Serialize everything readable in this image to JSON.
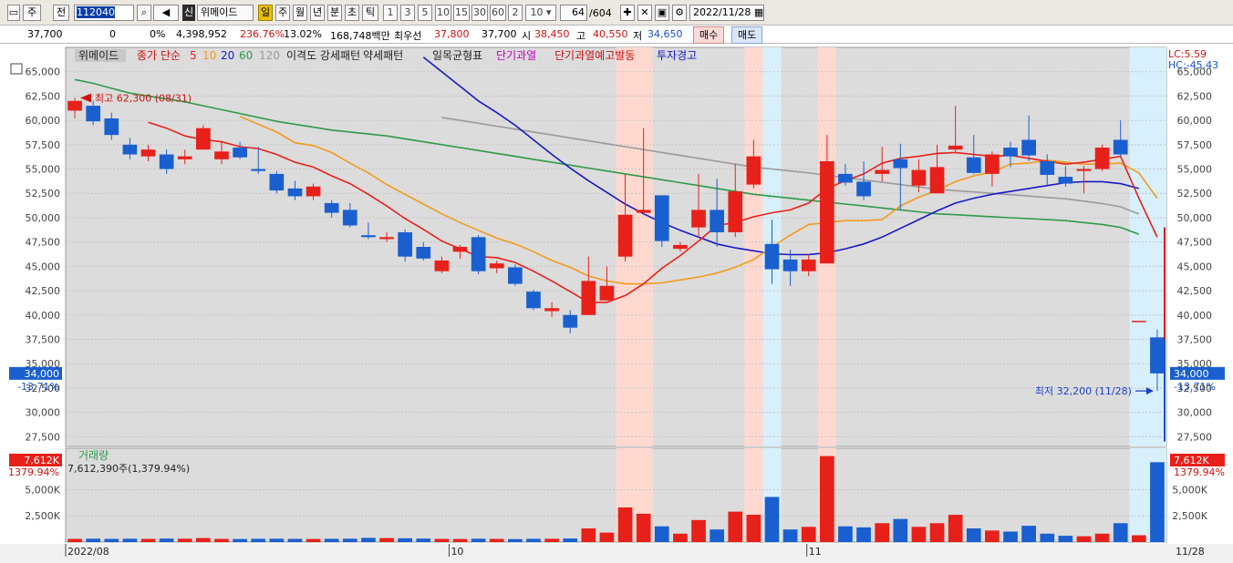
{
  "toolbar": {
    "items": [
      "주",
      "전",
      "112040",
      "신",
      "위메이드",
      "일",
      "주",
      "월",
      "년",
      "분",
      "초",
      "틱",
      "1",
      "3",
      "5",
      "10",
      "15",
      "30",
      "60",
      "2",
      "10",
      "64",
      "/604",
      "2022/11/28"
    ]
  },
  "info": {
    "price": "37,700",
    "change": "0",
    "change_pct": "0%",
    "volume": "4,398,952",
    "vol_ratio": "236.76%",
    "turnover": "13.02%",
    "amount": "168,748백만",
    "best_label": "최우선",
    "best_ask": "37,800",
    "best_bid": "37,700",
    "open_label": "시",
    "open": "38,450",
    "high_label": "고",
    "high": "40,550",
    "low_label": "저",
    "low": "34,650",
    "buy": "매수",
    "sell": "매도"
  },
  "legend": {
    "name": "위메이드",
    "ma_label": "종가 단순",
    "ma5": "5",
    "ma10": "10",
    "ma20": "20",
    "ma60": "60",
    "ma120": "120",
    "items": [
      "이격도 강세패턴",
      "약세패턴",
      "일목균형표",
      "단기과열",
      "단기과열예고발동",
      "투자경고"
    ]
  },
  "right_labels": {
    "lc": "LC:5.59",
    "hc": "HC:-45.43"
  },
  "current_badge": {
    "price": "34,000",
    "pct": "-13.71%"
  },
  "vol_badge": {
    "value": "7,612K",
    "pct": "1379.94%"
  },
  "vol_panel": {
    "title": "거래량",
    "detail": "7,612,390주(1,379.94%)"
  },
  "annotations": {
    "high": "최고 62,300 (08/31)",
    "low": "최저 32,200 (11/28)"
  },
  "chart_data": {
    "type": "candlestick",
    "ylim": [
      26500,
      67500
    ],
    "price_ticks": [
      "27,500",
      "30,000",
      "32,500",
      "35,000",
      "37,500",
      "40,000",
      "42,500",
      "45,000",
      "47,500",
      "50,000",
      "52,500",
      "55,000",
      "57,500",
      "60,000",
      "62,500",
      "65,000"
    ],
    "vol_ticks": [
      "2,500K",
      "5,000K"
    ],
    "x_labels": [
      "2022/08",
      "10",
      "11",
      "11/28"
    ],
    "colors": {
      "up": "#e8201a",
      "down": "#1a5fd0",
      "ma5": "#e8201a",
      "ma10": "#f29a1c",
      "ma20": "#1818c8",
      "ma60": "#2e9a4a",
      "ma120": "#9a9a9a",
      "hot": "#ffd9d0",
      "warn": "#d8f0fb"
    },
    "candles": [
      {
        "o": 61000,
        "h": 62300,
        "l": 60200,
        "c": 62000,
        "v": 300
      },
      {
        "o": 61500,
        "h": 62000,
        "l": 59500,
        "c": 59900,
        "v": 320
      },
      {
        "o": 60200,
        "h": 60800,
        "l": 58000,
        "c": 58500,
        "v": 300
      },
      {
        "o": 57500,
        "h": 58200,
        "l": 56000,
        "c": 56500,
        "v": 320
      },
      {
        "o": 56300,
        "h": 57500,
        "l": 55800,
        "c": 57000,
        "v": 300
      },
      {
        "o": 56500,
        "h": 57000,
        "l": 54500,
        "c": 55000,
        "v": 330
      },
      {
        "o": 56000,
        "h": 57000,
        "l": 55500,
        "c": 56300,
        "v": 320
      },
      {
        "o": 57000,
        "h": 59500,
        "l": 57000,
        "c": 59200,
        "v": 380
      },
      {
        "o": 56000,
        "h": 57800,
        "l": 55500,
        "c": 56800,
        "v": 300
      },
      {
        "o": 57200,
        "h": 57800,
        "l": 56000,
        "c": 56200,
        "v": 290
      },
      {
        "o": 55000,
        "h": 57300,
        "l": 54500,
        "c": 54800,
        "v": 310
      },
      {
        "o": 54500,
        "h": 54800,
        "l": 52500,
        "c": 52800,
        "v": 320
      },
      {
        "o": 53000,
        "h": 53800,
        "l": 51800,
        "c": 52200,
        "v": 300
      },
      {
        "o": 52200,
        "h": 53500,
        "l": 51800,
        "c": 53200,
        "v": 290
      },
      {
        "o": 51500,
        "h": 51800,
        "l": 50000,
        "c": 50500,
        "v": 310
      },
      {
        "o": 50800,
        "h": 51500,
        "l": 49000,
        "c": 49200,
        "v": 320
      },
      {
        "o": 48200,
        "h": 49500,
        "l": 47800,
        "c": 48000,
        "v": 400
      },
      {
        "o": 47800,
        "h": 48500,
        "l": 47500,
        "c": 48000,
        "v": 380
      },
      {
        "o": 48500,
        "h": 48800,
        "l": 45500,
        "c": 46000,
        "v": 360
      },
      {
        "o": 47000,
        "h": 47500,
        "l": 45600,
        "c": 45800,
        "v": 330
      },
      {
        "o": 44500,
        "h": 46000,
        "l": 44300,
        "c": 45600,
        "v": 300
      },
      {
        "o": 46500,
        "h": 47200,
        "l": 45800,
        "c": 47000,
        "v": 290
      },
      {
        "o": 48000,
        "h": 48200,
        "l": 44200,
        "c": 44500,
        "v": 320
      },
      {
        "o": 44800,
        "h": 45600,
        "l": 44300,
        "c": 45300,
        "v": 300
      },
      {
        "o": 44900,
        "h": 45200,
        "l": 43000,
        "c": 43200,
        "v": 280
      },
      {
        "o": 42400,
        "h": 42600,
        "l": 40500,
        "c": 40700,
        "v": 310
      },
      {
        "o": 40400,
        "h": 41300,
        "l": 39800,
        "c": 40700,
        "v": 310
      },
      {
        "o": 40000,
        "h": 40500,
        "l": 38100,
        "c": 38700,
        "v": 340
      },
      {
        "o": 40000,
        "h": 46000,
        "l": 40000,
        "c": 43500,
        "v": 1300
      },
      {
        "o": 41500,
        "h": 45000,
        "l": 41500,
        "c": 43000,
        "v": 900
      },
      {
        "o": 46000,
        "h": 54500,
        "l": 45500,
        "c": 50300,
        "v": 3300
      },
      {
        "o": 50500,
        "h": 59200,
        "l": 50300,
        "c": 50800,
        "v": 2700
      },
      {
        "o": 52300,
        "h": 52300,
        "l": 47000,
        "c": 47600,
        "v": 1500
      },
      {
        "o": 46800,
        "h": 47500,
        "l": 46500,
        "c": 47200,
        "v": 800
      },
      {
        "o": 49000,
        "h": 54500,
        "l": 48000,
        "c": 50800,
        "v": 2100
      },
      {
        "o": 50800,
        "h": 54000,
        "l": 47000,
        "c": 48500,
        "v": 1200
      },
      {
        "o": 48500,
        "h": 55500,
        "l": 48000,
        "c": 52700,
        "v": 2900
      },
      {
        "o": 53400,
        "h": 58000,
        "l": 53000,
        "c": 56300,
        "v": 2600
      },
      {
        "o": 47300,
        "h": 49800,
        "l": 43200,
        "c": 44700,
        "v": 4300
      },
      {
        "o": 45700,
        "h": 46700,
        "l": 43000,
        "c": 44500,
        "v": 1200
      },
      {
        "o": 44500,
        "h": 46300,
        "l": 44000,
        "c": 45700,
        "v": 1450
      },
      {
        "o": 45300,
        "h": 58500,
        "l": 45300,
        "c": 55800,
        "v": 8200
      },
      {
        "o": 54500,
        "h": 55500,
        "l": 53300,
        "c": 53600,
        "v": 1500
      },
      {
        "o": 53700,
        "h": 55800,
        "l": 51800,
        "c": 52200,
        "v": 1400
      },
      {
        "o": 54500,
        "h": 57300,
        "l": 53700,
        "c": 54900,
        "v": 1800
      },
      {
        "o": 56000,
        "h": 57600,
        "l": 50800,
        "c": 55100,
        "v": 2200
      },
      {
        "o": 53300,
        "h": 56000,
        "l": 52600,
        "c": 54900,
        "v": 1450
      },
      {
        "o": 52500,
        "h": 57500,
        "l": 52500,
        "c": 55200,
        "v": 1800
      },
      {
        "o": 57000,
        "h": 61500,
        "l": 56800,
        "c": 57400,
        "v": 2600
      },
      {
        "o": 56200,
        "h": 58500,
        "l": 54500,
        "c": 54600,
        "v": 1300
      },
      {
        "o": 54500,
        "h": 56800,
        "l": 53200,
        "c": 56500,
        "v": 1100
      },
      {
        "o": 57200,
        "h": 57800,
        "l": 55200,
        "c": 56300,
        "v": 1000
      },
      {
        "o": 58000,
        "h": 60500,
        "l": 55800,
        "c": 56400,
        "v": 1550
      },
      {
        "o": 55800,
        "h": 56500,
        "l": 53400,
        "c": 54400,
        "v": 800
      },
      {
        "o": 54200,
        "h": 55300,
        "l": 53200,
        "c": 53500,
        "v": 600
      },
      {
        "o": 54800,
        "h": 55300,
        "l": 52500,
        "c": 55000,
        "v": 550
      },
      {
        "o": 55000,
        "h": 57500,
        "l": 54800,
        "c": 57200,
        "v": 800
      },
      {
        "o": 58000,
        "h": 60000,
        "l": 56300,
        "c": 56500,
        "v": 1800
      },
      {
        "o": 39400,
        "h": 39400,
        "l": 39400,
        "c": 39400,
        "v": 650
      },
      {
        "o": 37700,
        "h": 38500,
        "l": 32200,
        "c": 34000,
        "v": 7612
      }
    ],
    "ma5": [
      null,
      null,
      null,
      null,
      59800,
      59200,
      58400,
      58000,
      57800,
      57300,
      57100,
      56500,
      55700,
      55200,
      54300,
      53500,
      52400,
      51200,
      49900,
      48800,
      47600,
      46800,
      46000,
      45900,
      45400,
      44500,
      43500,
      42400,
      41300,
      41300,
      42000,
      43200,
      44800,
      46100,
      47600,
      49200,
      49500,
      50100,
      50500,
      50800,
      51500,
      53000,
      53800,
      54500,
      55600,
      56100,
      56300,
      56600,
      56700,
      56500,
      56300,
      56400,
      56100,
      55800,
      55500,
      55700,
      56000,
      56300,
      52000,
      48000
    ],
    "ma10": [
      null,
      null,
      null,
      null,
      null,
      null,
      null,
      null,
      null,
      60400,
      59600,
      58800,
      57700,
      57400,
      56700,
      55600,
      54600,
      53400,
      52400,
      51400,
      50400,
      49500,
      48700,
      47900,
      47300,
      46500,
      45600,
      44900,
      44000,
      43500,
      43200,
      43200,
      43300,
      43600,
      43900,
      44300,
      44900,
      45700,
      47000,
      48200,
      49300,
      49500,
      49700,
      49700,
      49800,
      51200,
      52100,
      52800,
      53700,
      54300,
      54700,
      55500,
      55600,
      55900,
      55700,
      55500,
      55500,
      55600,
      54600,
      52000
    ],
    "ma20": [
      null,
      null,
      null,
      null,
      null,
      null,
      null,
      null,
      null,
      null,
      null,
      null,
      null,
      null,
      null,
      null,
      null,
      null,
      null,
      66500,
      65000,
      63500,
      62000,
      60800,
      59500,
      58000,
      56500,
      55100,
      53800,
      52600,
      51400,
      50400,
      49500,
      48700,
      48000,
      47300,
      46900,
      46600,
      46300,
      46200,
      46200,
      46400,
      46800,
      47300,
      48000,
      48900,
      49800,
      50700,
      51500,
      52000,
      52400,
      52700,
      53000,
      53300,
      53600,
      53700,
      53700,
      53500,
      53000,
      null
    ],
    "ma60": [
      64200,
      63800,
      63300,
      62800,
      62500,
      62200,
      61900,
      61500,
      61100,
      60700,
      60300,
      59900,
      59600,
      59300,
      59000,
      58800,
      58600,
      58400,
      58100,
      57800,
      57500,
      57200,
      56900,
      56600,
      56300,
      56000,
      55700,
      55400,
      55100,
      54800,
      54500,
      54200,
      53900,
      53600,
      53300,
      53000,
      52700,
      52400,
      52200,
      52000,
      51800,
      51600,
      51400,
      51200,
      51000,
      50800,
      50600,
      50400,
      50300,
      50200,
      50100,
      50000,
      49900,
      49800,
      49700,
      49500,
      49300,
      49000,
      48300,
      null
    ],
    "ma120": [
      null,
      null,
      null,
      null,
      null,
      null,
      null,
      null,
      null,
      null,
      null,
      null,
      null,
      null,
      null,
      null,
      null,
      null,
      null,
      null,
      null,
      null,
      null,
      null,
      null,
      null,
      null,
      null,
      null,
      null,
      null,
      null,
      null,
      null,
      null,
      null,
      null,
      null,
      null,
      null,
      null,
      null,
      null,
      null,
      null,
      null,
      null,
      null,
      null,
      null,
      null,
      null,
      null,
      null,
      null,
      null,
      null,
      null,
      null,
      null
    ],
    "zones": {
      "hot": [
        [
          30,
          31
        ],
        [
          37,
          37
        ],
        [
          41,
          41
        ]
      ],
      "warn": [
        [
          38,
          38
        ],
        [
          58,
          59
        ]
      ]
    }
  }
}
